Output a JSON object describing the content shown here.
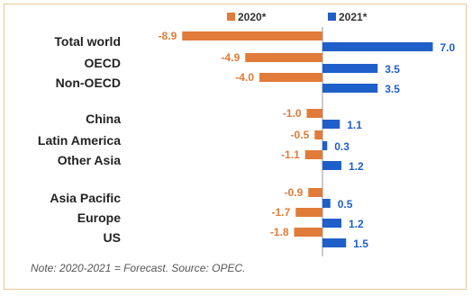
{
  "chart_data": {
    "type": "bar",
    "orientation": "horizontal",
    "categories": [
      "Total world",
      "OECD",
      "Non-OECD",
      "China",
      "Latin America",
      "Other Asia",
      "Asia Pacific",
      "Europe",
      "US"
    ],
    "series": [
      {
        "name": "2020*",
        "color": "#E07B39",
        "values": [
          -8.9,
          -4.9,
          -4.0,
          -1.0,
          -0.5,
          -1.1,
          -0.9,
          -1.7,
          -1.8
        ],
        "labels": [
          "-8.9",
          "-4.9",
          "-4.0",
          "-1.0",
          "-0.5",
          "-1.1",
          "-0.9",
          "-1.7",
          "-1.8"
        ]
      },
      {
        "name": "2021*",
        "color": "#1F5FC9",
        "values": [
          7.0,
          3.5,
          3.5,
          1.1,
          0.3,
          1.2,
          0.5,
          1.2,
          1.5
        ],
        "labels": [
          "7.0",
          "3.5",
          "3.5",
          "1.1",
          "0.3",
          "1.2",
          "0.5",
          "1.2",
          "1.5"
        ]
      }
    ],
    "legend_position": "top",
    "xlim": [
      -10,
      8
    ],
    "grid": false
  },
  "note": "Note: 2020-2021 = Forecast. Source: OPEC."
}
